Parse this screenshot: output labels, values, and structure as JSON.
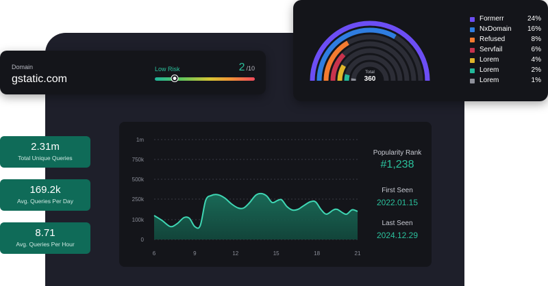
{
  "domain_card": {
    "label": "Domain",
    "value": "gstatic.com",
    "risk_label": "Low Risk",
    "risk_score": "2",
    "risk_max": "/10",
    "risk_fraction": 0.2
  },
  "stats": [
    {
      "value": "2.31m",
      "label": "Total Unique Queries"
    },
    {
      "value": "169.2k",
      "label": "Avg. Queries Per Day"
    },
    {
      "value": "8.71",
      "label": "Avg. Queries Per Hour"
    }
  ],
  "info": {
    "popularity_label": "Popularity Rank",
    "popularity_value": "#1,238",
    "first_seen_label": "First Seen",
    "first_seen_value": "2022.01.15",
    "last_seen_label": "Last Seen",
    "last_seen_value": "2024.12.29"
  },
  "donut": {
    "total_label": "Total",
    "total_value": "360",
    "items": [
      {
        "name": "Formerr",
        "pct": "24%",
        "value": 24,
        "color": "#6c4ef5"
      },
      {
        "name": "NxDomain",
        "pct": "16%",
        "value": 16,
        "color": "#2f7de0"
      },
      {
        "name": "Refused",
        "pct": "8%",
        "value": 8,
        "color": "#f47b30"
      },
      {
        "name": "Servfail",
        "pct": "6%",
        "value": 6,
        "color": "#c8334d"
      },
      {
        "name": "Lorem",
        "pct": "4%",
        "value": 4,
        "color": "#e0b52a"
      },
      {
        "name": "Lorem",
        "pct": "2%",
        "value": 2,
        "color": "#22b99a"
      },
      {
        "name": "Lorem",
        "pct": "1%",
        "value": 1,
        "color": "#8e909a"
      }
    ],
    "track_color": "#2c2d36"
  },
  "chart_data": {
    "type": "area",
    "y_ticks": [
      "1m",
      "750k",
      "500k",
      "250k",
      "100k",
      "0"
    ],
    "y_tick_values": [
      1000000,
      750000,
      500000,
      250000,
      100000,
      0
    ],
    "x_ticks": [
      "6",
      "9",
      "12",
      "15",
      "18",
      "21"
    ],
    "x_tick_values": [
      6,
      9,
      12,
      15,
      18,
      21
    ],
    "xlim": [
      6,
      21
    ],
    "points": [
      [
        6,
        130000
      ],
      [
        6.6,
        95000
      ],
      [
        7.2,
        65000
      ],
      [
        7.7,
        80000
      ],
      [
        8.2,
        115000
      ],
      [
        8.6,
        110000
      ],
      [
        9,
        65000
      ],
      [
        9.4,
        70000
      ],
      [
        9.8,
        240000
      ],
      [
        10.2,
        295000
      ],
      [
        10.7,
        305000
      ],
      [
        11.2,
        265000
      ],
      [
        11.7,
        215000
      ],
      [
        12.2,
        185000
      ],
      [
        12.6,
        185000
      ],
      [
        13,
        220000
      ],
      [
        13.5,
        300000
      ],
      [
        13.9,
        320000
      ],
      [
        14.3,
        290000
      ],
      [
        14.7,
        225000
      ],
      [
        15.1,
        240000
      ],
      [
        15.4,
        245000
      ],
      [
        15.8,
        195000
      ],
      [
        16.2,
        170000
      ],
      [
        16.6,
        175000
      ],
      [
        17,
        200000
      ],
      [
        17.5,
        230000
      ],
      [
        17.9,
        230000
      ],
      [
        18.3,
        175000
      ],
      [
        18.7,
        140000
      ],
      [
        19.2,
        170000
      ],
      [
        19.5,
        175000
      ],
      [
        19.9,
        150000
      ],
      [
        20.2,
        140000
      ],
      [
        20.6,
        172000
      ],
      [
        21,
        160000
      ]
    ],
    "line_color": "#3fd6b3",
    "grid": true
  }
}
